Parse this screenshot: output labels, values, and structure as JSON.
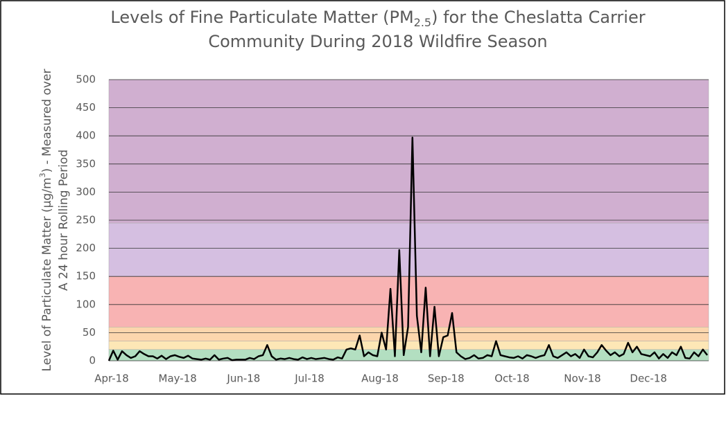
{
  "chart_data": {
    "type": "line",
    "title": [
      "Levels of Fine Particulate Matter (PM",
      "2.5",
      ") for the Cheslatta Carrier",
      "Community During 2018 Wildfire Season"
    ],
    "y_label": [
      "Level of Particulate Matter (µg/m",
      "3",
      ") - Measured over",
      "A 24 hour Rolling Period"
    ],
    "categories": [
      "Apr-18",
      null,
      null,
      null,
      null,
      null,
      null,
      null,
      null,
      null,
      null,
      null,
      null,
      null,
      null,
      "May-18",
      null,
      null,
      null,
      null,
      null,
      null,
      null,
      null,
      null,
      null,
      null,
      null,
      null,
      null,
      "Jun-18",
      null,
      null,
      null,
      null,
      null,
      null,
      null,
      null,
      null,
      null,
      null,
      null,
      null,
      null,
      "Jul-18",
      null,
      null,
      null,
      null,
      null,
      null,
      null,
      null,
      null,
      null,
      null,
      null,
      null,
      null,
      null,
      "Aug-18",
      null,
      null,
      null,
      null,
      null,
      null,
      null,
      null,
      null,
      null,
      null,
      null,
      null,
      null,
      "Sep-18",
      null,
      null,
      null,
      null,
      null,
      null,
      null,
      null,
      null,
      null,
      null,
      null,
      null,
      null,
      "Oct-18",
      null,
      null,
      null,
      null,
      null,
      null,
      null,
      null,
      null,
      null,
      null,
      null,
      null,
      null,
      null,
      "Nov-18",
      null,
      null,
      null,
      null,
      null,
      null,
      null,
      null,
      null,
      null,
      null,
      null,
      null,
      null,
      "Dec-18",
      null,
      null,
      null,
      null,
      null,
      null,
      null,
      null,
      null,
      null,
      null,
      null,
      null,
      null
    ],
    "values": [
      0,
      18,
      2,
      17,
      10,
      5,
      8,
      17,
      12,
      8,
      8,
      4,
      9,
      3,
      8,
      10,
      7,
      5,
      9,
      4,
      3,
      2,
      4,
      2,
      10,
      2,
      4,
      5,
      1,
      2,
      2,
      2,
      5,
      3,
      8,
      10,
      28,
      8,
      2,
      4,
      3,
      5,
      3,
      2,
      6,
      3,
      5,
      3,
      4,
      5,
      3,
      2,
      6,
      4,
      20,
      22,
      20,
      45,
      8,
      15,
      10,
      8,
      50,
      20,
      128,
      8,
      197,
      10,
      60,
      397,
      80,
      15,
      130,
      8,
      96,
      8,
      42,
      45,
      85,
      15,
      8,
      3,
      5,
      10,
      4,
      5,
      10,
      8,
      35,
      10,
      8,
      6,
      5,
      8,
      4,
      10,
      8,
      5,
      8,
      10,
      28,
      8,
      5,
      10,
      15,
      8,
      12,
      5,
      20,
      8,
      6,
      15,
      28,
      18,
      10,
      15,
      8,
      12,
      32,
      15,
      25,
      12,
      10,
      8,
      15,
      4,
      12,
      5,
      15,
      10,
      25,
      5,
      4,
      15,
      8,
      20,
      10
    ],
    "color": "#000000",
    "bands": [
      {
        "from": 0,
        "to": 20,
        "color": "#b3dfc1"
      },
      {
        "from": 20,
        "to": 35,
        "color": "#fde7b6"
      },
      {
        "from": 35,
        "to": 60,
        "color": "#fcd6ad"
      },
      {
        "from": 60,
        "to": 150,
        "color": "#f8b3b3"
      },
      {
        "from": 150,
        "to": 245,
        "color": "#d5bfe1"
      },
      {
        "from": 245,
        "to": 500,
        "color": "#d0afd0"
      }
    ],
    "ylim": [
      0,
      500
    ],
    "yticks": [
      0,
      50,
      100,
      150,
      200,
      250,
      300,
      350,
      400,
      450,
      500
    ],
    "grid": true
  }
}
